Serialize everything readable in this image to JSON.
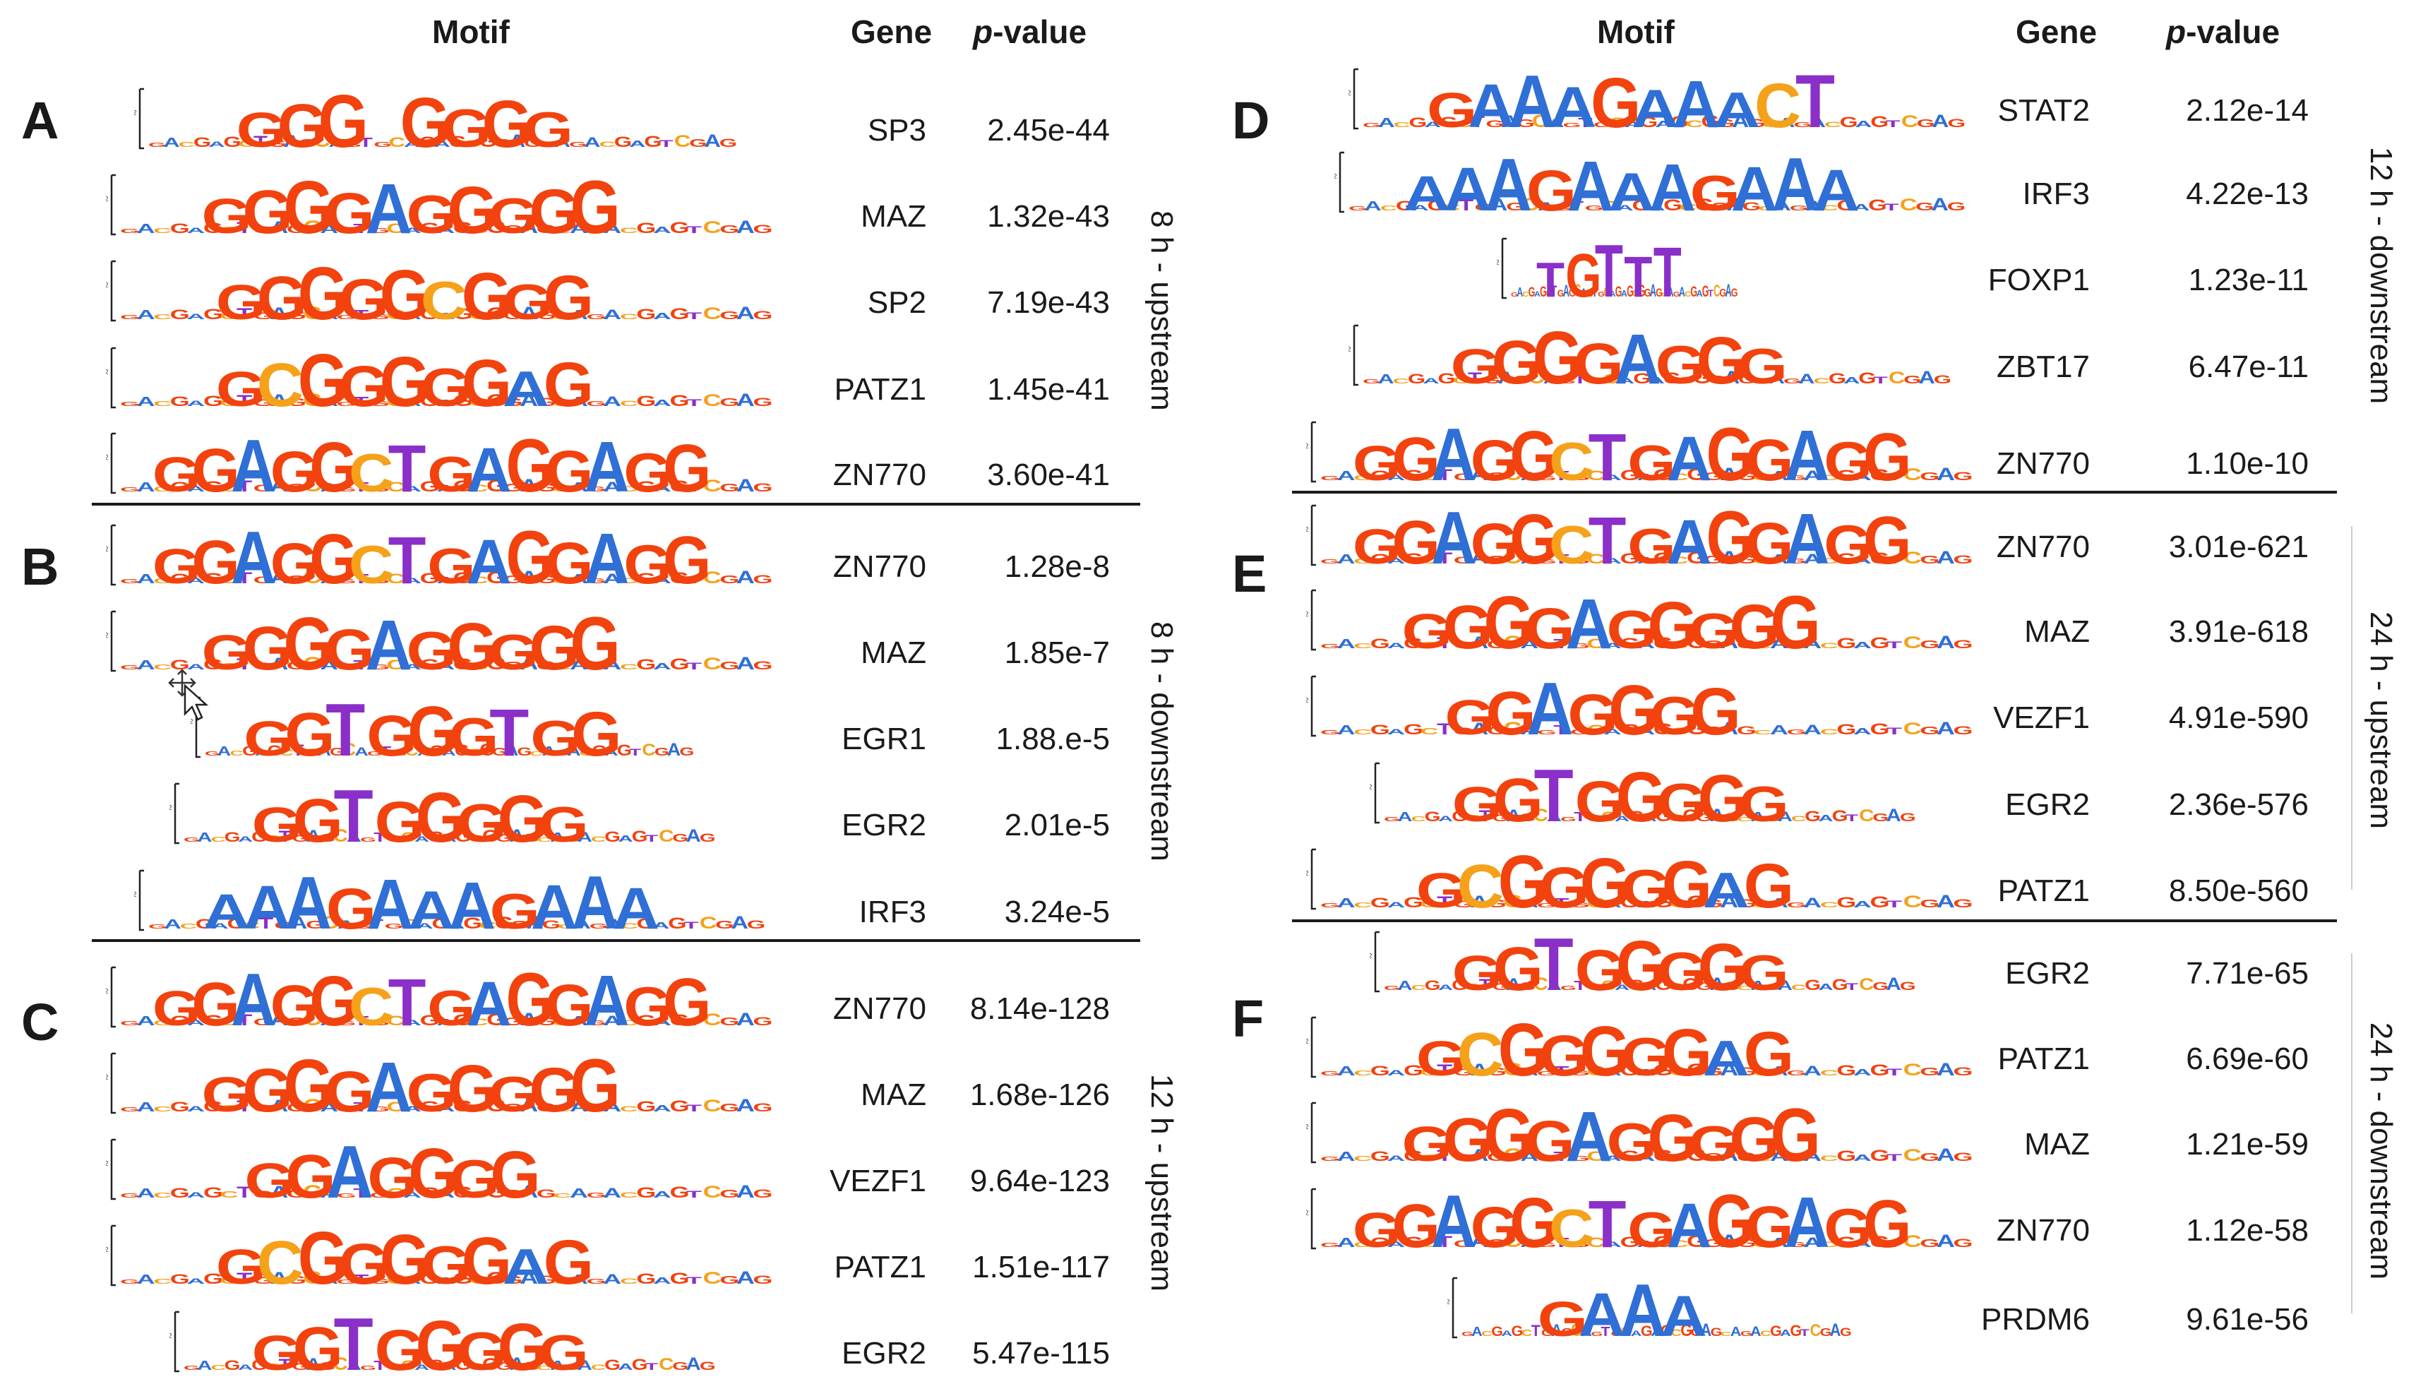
{
  "headers": {
    "motif": "Motif",
    "gene": "Gene",
    "pvalue_p": "p",
    "pvalue_rest": "-value"
  },
  "colors": {
    "G": "#f2420e",
    "A": "#2f6fd6",
    "C": "#f5a11a",
    "T": "#8b2fc9"
  },
  "panels": {
    "A": {
      "letter": "A",
      "condition": "8 h - upstream",
      "rows": [
        {
          "gene": "SP3",
          "pvalue": "2.45e-44",
          "logo": "GGG-GGGG",
          "icon": "sp3-motif-logo"
        },
        {
          "gene": "MAZ",
          "pvalue": "1.32e-43",
          "logo": "GGGGAGGGGG",
          "icon": "maz-motif-logo"
        },
        {
          "gene": "SP2",
          "pvalue": "7.19e-43",
          "logo": "GGGGGCGGG",
          "icon": "sp2-motif-logo"
        },
        {
          "gene": "PATZ1",
          "pvalue": "1.45e-41",
          "logo": "GCGGGGGAG",
          "icon": "patz1-motif-logo"
        },
        {
          "gene": "ZN770",
          "pvalue": "3.60e-41",
          "logo": "GGAGGCTGAGGAGG",
          "icon": "zn770-motif-logo"
        }
      ]
    },
    "B": {
      "letter": "B",
      "condition": "8 h - downstream",
      "rows": [
        {
          "gene": "ZN770",
          "pvalue": "1.28e-8",
          "logo": "GGAGGCTGAGGAGG",
          "icon": "zn770-motif-logo"
        },
        {
          "gene": "MAZ",
          "pvalue": "1.85e-7",
          "logo": "GGGGAGGGGG",
          "icon": "maz-motif-logo"
        },
        {
          "gene": "EGR1",
          "pvalue": "1.88.e-5",
          "logo": "GGTGGGTGG",
          "icon": "egr1-motif-logo"
        },
        {
          "gene": "EGR2",
          "pvalue": "2.01e-5",
          "logo": "GGTGGGGG",
          "icon": "egr2-motif-logo"
        },
        {
          "gene": "IRF3",
          "pvalue": "3.24e-5",
          "logo": "AAAGAAAGAAA",
          "icon": "irf3-motif-logo"
        }
      ]
    },
    "C": {
      "letter": "C",
      "condition": "12 h - upstream",
      "rows": [
        {
          "gene": "ZN770",
          "pvalue": "8.14e-128",
          "logo": "GGAGGCTGAGGAGG",
          "icon": "zn770-motif-logo"
        },
        {
          "gene": "MAZ",
          "pvalue": "1.68e-126",
          "logo": "GGGGAGGGGG",
          "icon": "maz-motif-logo"
        },
        {
          "gene": "VEZF1",
          "pvalue": "9.64e-123",
          "logo": "GGAGGGG",
          "icon": "vezf1-motif-logo"
        },
        {
          "gene": "PATZ1",
          "pvalue": "1.51e-117",
          "logo": "GCGGGGGAG",
          "icon": "patz1-motif-logo"
        },
        {
          "gene": "EGR2",
          "pvalue": "5.47e-115",
          "logo": "GGTGGGGG",
          "icon": "egr2-motif-logo"
        }
      ]
    },
    "D": {
      "letter": "D",
      "condition": "12 h - downstream",
      "rows": [
        {
          "gene": "STAT2",
          "pvalue": "2.12e-14",
          "logo": "GAAAGAAACT",
          "icon": "stat2-motif-logo"
        },
        {
          "gene": "IRF3",
          "pvalue": "4.22e-13",
          "logo": "AAAGAAAGAAA",
          "icon": "irf3-motif-logo"
        },
        {
          "gene": "FOXP1",
          "pvalue": "1.23e-11",
          "logo": "TGTTT",
          "icon": "foxp1-motif-logo"
        },
        {
          "gene": "ZBT17",
          "pvalue": "6.47e-11",
          "logo": "GGGGAGGG",
          "icon": "zbt17-motif-logo"
        },
        {
          "gene": "ZN770",
          "pvalue": "1.10e-10",
          "logo": "GGAGGCTGAGGAGG",
          "icon": "zn770-motif-logo"
        }
      ]
    },
    "E": {
      "letter": "E",
      "condition": "24 h - upstream",
      "rows": [
        {
          "gene": "ZN770",
          "pvalue": "3.01e-621",
          "logo": "GGAGGCTGAGGAGG",
          "icon": "zn770-motif-logo"
        },
        {
          "gene": "MAZ",
          "pvalue": "3.91e-618",
          "logo": "GGGGAGGGGG",
          "icon": "maz-motif-logo"
        },
        {
          "gene": "VEZF1",
          "pvalue": "4.91e-590",
          "logo": "GGAGGGG",
          "icon": "vezf1-motif-logo"
        },
        {
          "gene": "EGR2",
          "pvalue": "2.36e-576",
          "logo": "GGTGGGGG",
          "icon": "egr2-motif-logo"
        },
        {
          "gene": "PATZ1",
          "pvalue": "8.50e-560",
          "logo": "GCGGGGGAG",
          "icon": "patz1-motif-logo"
        }
      ]
    },
    "F": {
      "letter": "F",
      "condition": "24 h - downstream",
      "rows": [
        {
          "gene": "EGR2",
          "pvalue": "7.71e-65",
          "logo": "GGTGGGGG",
          "icon": "egr2-motif-logo"
        },
        {
          "gene": "PATZ1",
          "pvalue": "6.69e-60",
          "logo": "GCGGGGGAG",
          "icon": "patz1-motif-logo"
        },
        {
          "gene": "MAZ",
          "pvalue": "1.21e-59",
          "logo": "GGGGAGGGGG",
          "icon": "maz-motif-logo"
        },
        {
          "gene": "ZN770",
          "pvalue": "1.12e-58",
          "logo": "GGAGGCTGAGGAGG",
          "icon": "zn770-motif-logo"
        },
        {
          "gene": "PRDM6",
          "pvalue": "9.61e-56",
          "logo": "GAAA",
          "icon": "prdm6-motif-logo"
        }
      ]
    }
  }
}
